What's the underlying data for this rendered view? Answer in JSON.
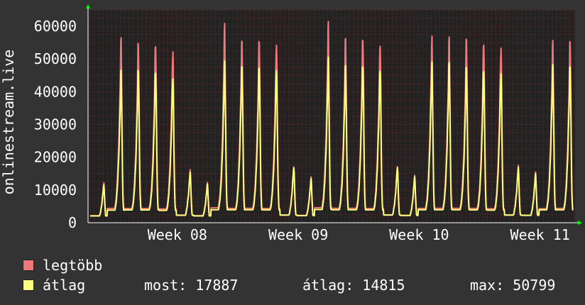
{
  "chart_data": {
    "type": "line",
    "ylabel": "onlinestream.live",
    "ylim": [
      0,
      65000
    ],
    "yticks": [
      0,
      10000,
      20000,
      30000,
      40000,
      50000,
      60000
    ],
    "yticks_text": [
      "0",
      "10000",
      "20000",
      "30000",
      "40000",
      "50000",
      "60000"
    ],
    "x_labels": [
      "Week 08",
      "Week 09",
      "Week 10",
      "Week 11"
    ],
    "grid": true,
    "colors": {
      "background": "#333333",
      "plot_background": "#222222",
      "grid": "#6b2a2a",
      "axis": "#ffffff",
      "arrow": "#00ff00",
      "text": "#ffffff"
    },
    "series": [
      {
        "name": "legtöbb",
        "color": "#f07878",
        "daily_peaks": [
          12200,
          57000,
          56500,
          56500,
          54000,
          16300,
          12300,
          61000,
          57000,
          58000,
          56500,
          17300,
          14000,
          61500,
          57500,
          58000,
          56500,
          17500,
          14500,
          57000,
          57500,
          58000,
          57000,
          55000,
          17600,
          15500,
          56000,
          57000
        ]
      },
      {
        "name": "átlag",
        "color": "#ffff80",
        "daily_peaks": [
          11500,
          47000,
          48000,
          48000,
          45500,
          15500,
          11800,
          49500,
          49000,
          49500,
          48500,
          17000,
          13500,
          50500,
          49000,
          49500,
          48500,
          17200,
          14000,
          49000,
          49500,
          49000,
          48500,
          47000,
          17000,
          15000,
          48500,
          49000
        ]
      }
    ]
  },
  "legend": {
    "items": [
      {
        "label": "legtöbb",
        "color": "#f07878"
      },
      {
        "label": "átlag",
        "color": "#ffff80"
      }
    ]
  },
  "stats": {
    "most": "most: 17887",
    "atlag": "átlag: 14815",
    "max": "max: 50799"
  }
}
